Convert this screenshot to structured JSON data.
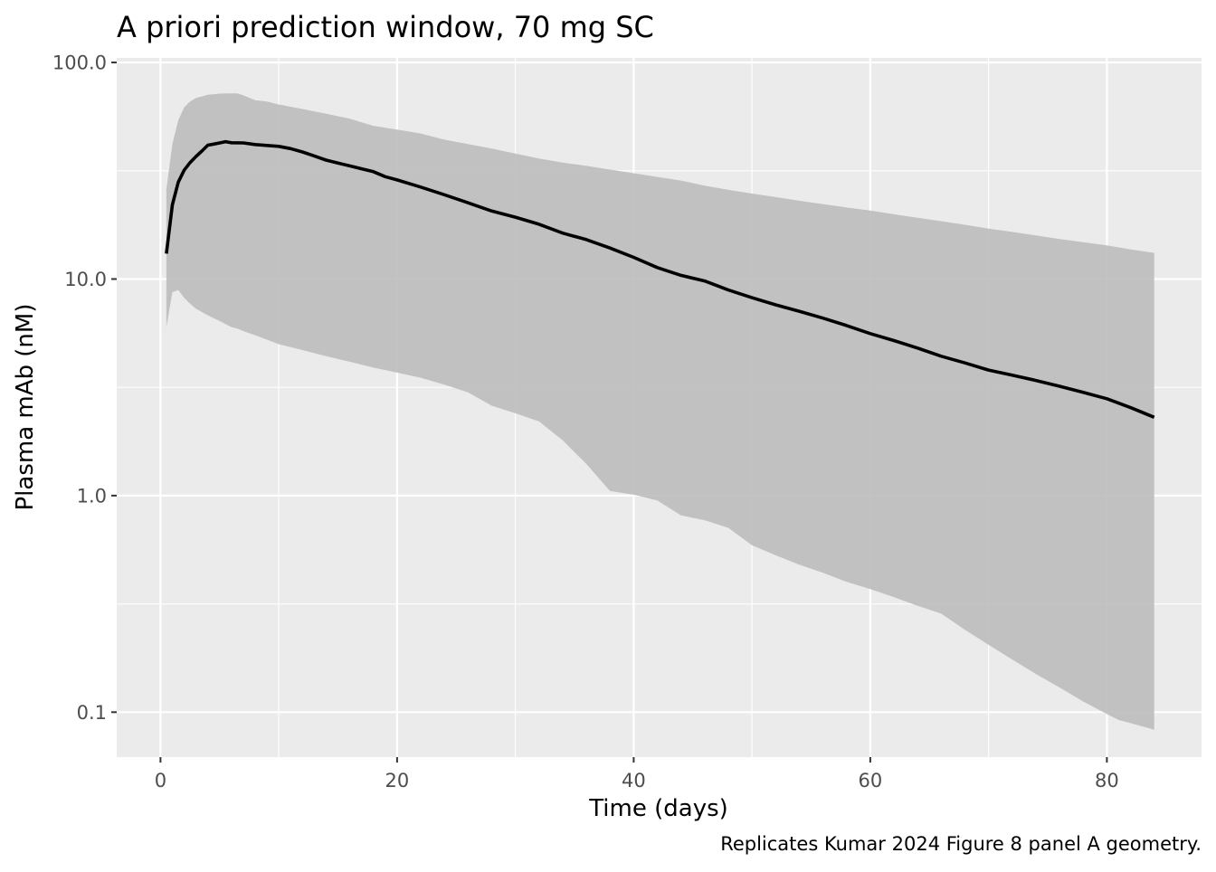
{
  "chart_data": {
    "type": "area",
    "title": "A priori prediction window, 70 mg SC",
    "xlabel": "Time (days)",
    "ylabel": "Plasma mAb (nM)",
    "caption": "Replicates Kumar 2024 Figure 8 panel A geometry.",
    "x_scale": "linear",
    "y_scale": "log10",
    "xlim": [
      -3.7,
      88.0
    ],
    "ylim": [
      0.062,
      105.0
    ],
    "x_ticks": [
      0,
      20,
      40,
      60,
      80
    ],
    "x_tick_labels": [
      "0",
      "20",
      "40",
      "60",
      "80"
    ],
    "x_minor_ticks": [
      10,
      30,
      50,
      70
    ],
    "y_ticks": [
      0.1,
      1.0,
      10.0,
      100.0
    ],
    "y_tick_labels": [
      "0.1",
      "1.0",
      "10.0",
      "100.0"
    ],
    "y_minor_ticks": [
      0.316,
      3.16,
      31.6
    ],
    "grid": true,
    "legend": "none",
    "colors": {
      "panel": "#EBEBEB",
      "grid": "#FFFFFF",
      "ribbon": "#BDBDBD",
      "line": "#000000",
      "text": "#000000",
      "tick_text": "#4D4D4D",
      "tick_mark": "#333333"
    },
    "series": [
      {
        "kind": "median_line",
        "x": [
          0.5,
          1.0,
          1.5,
          2.0,
          2.5,
          3.0,
          3.5,
          4.0,
          4.5,
          5.0,
          5.5,
          6.0,
          7.0,
          8.0,
          9.0,
          10.0,
          11.0,
          12.0,
          13.0,
          14.0,
          15.0,
          16.0,
          17.0,
          18.0,
          19.0,
          20.0,
          22.0,
          24.0,
          26.0,
          28.0,
          30.0,
          32.0,
          34.0,
          36.0,
          38.0,
          40.0,
          42.0,
          44.0,
          46.0,
          48.0,
          50.0,
          52.0,
          54.0,
          56.0,
          58.0,
          60.0,
          62.0,
          64.0,
          66.0,
          68.0,
          70.0,
          72.0,
          74.0,
          76.0,
          78.0,
          80.0,
          82.0,
          84.0
        ],
        "y": [
          13.1,
          22.0,
          28.0,
          31.8,
          34.5,
          36.8,
          39.0,
          41.5,
          42.0,
          42.5,
          43.1,
          42.6,
          42.5,
          41.8,
          41.4,
          41.0,
          40.0,
          38.6,
          37.0,
          35.4,
          34.3,
          33.3,
          32.3,
          31.3,
          29.7,
          28.7,
          26.6,
          24.5,
          22.5,
          20.6,
          19.3,
          17.9,
          16.3,
          15.2,
          13.9,
          12.6,
          11.3,
          10.4,
          9.8,
          8.9,
          8.2,
          7.6,
          7.1,
          6.6,
          6.1,
          5.6,
          5.2,
          4.8,
          4.4,
          4.1,
          3.8,
          3.6,
          3.4,
          3.2,
          3.0,
          2.8,
          2.55,
          2.3
        ]
      },
      {
        "kind": "prediction_band",
        "x": [
          0.5,
          1.0,
          1.5,
          2.0,
          2.5,
          3.0,
          4.0,
          5.0,
          6.0,
          6.5,
          7.0,
          8.0,
          9.0,
          10.0,
          12.0,
          14.0,
          16.0,
          18.0,
          20.0,
          22.0,
          24.0,
          26.0,
          28.0,
          30.0,
          32.0,
          34.0,
          36.0,
          38.0,
          40.0,
          42.0,
          44.0,
          46.0,
          48.0,
          50.0,
          52.0,
          54.0,
          56.0,
          58.0,
          60.0,
          62.0,
          64.0,
          66.0,
          68.0,
          70.0,
          72.0,
          74.0,
          76.0,
          78.0,
          80.0,
          81.0,
          82.0,
          84.0
        ],
        "lower": [
          6.0,
          8.7,
          8.9,
          8.2,
          7.7,
          7.3,
          6.8,
          6.4,
          6.0,
          5.9,
          5.75,
          5.5,
          5.25,
          5.0,
          4.7,
          4.4,
          4.15,
          3.9,
          3.7,
          3.5,
          3.25,
          3.0,
          2.6,
          2.4,
          2.2,
          1.8,
          1.4,
          1.05,
          1.01,
          0.95,
          0.81,
          0.77,
          0.71,
          0.59,
          0.53,
          0.48,
          0.44,
          0.4,
          0.37,
          0.34,
          0.31,
          0.285,
          0.24,
          0.205,
          0.175,
          0.15,
          0.13,
          0.112,
          0.098,
          0.092,
          0.089,
          0.083
        ],
        "upper": [
          26.0,
          42.0,
          54.0,
          62.0,
          66.0,
          68.5,
          71.0,
          71.8,
          72.0,
          72.0,
          70.5,
          67.0,
          66.0,
          64.0,
          61.0,
          58.0,
          55.0,
          51.0,
          49.0,
          47.0,
          44.0,
          42.0,
          40.0,
          38.0,
          36.0,
          34.5,
          33.3,
          32.0,
          30.8,
          29.6,
          28.5,
          27.0,
          25.8,
          24.8,
          23.9,
          23.0,
          22.2,
          21.4,
          20.7,
          19.9,
          19.2,
          18.5,
          17.8,
          17.1,
          16.5,
          15.9,
          15.3,
          14.8,
          14.3,
          14.0,
          13.7,
          13.2
        ]
      }
    ]
  }
}
